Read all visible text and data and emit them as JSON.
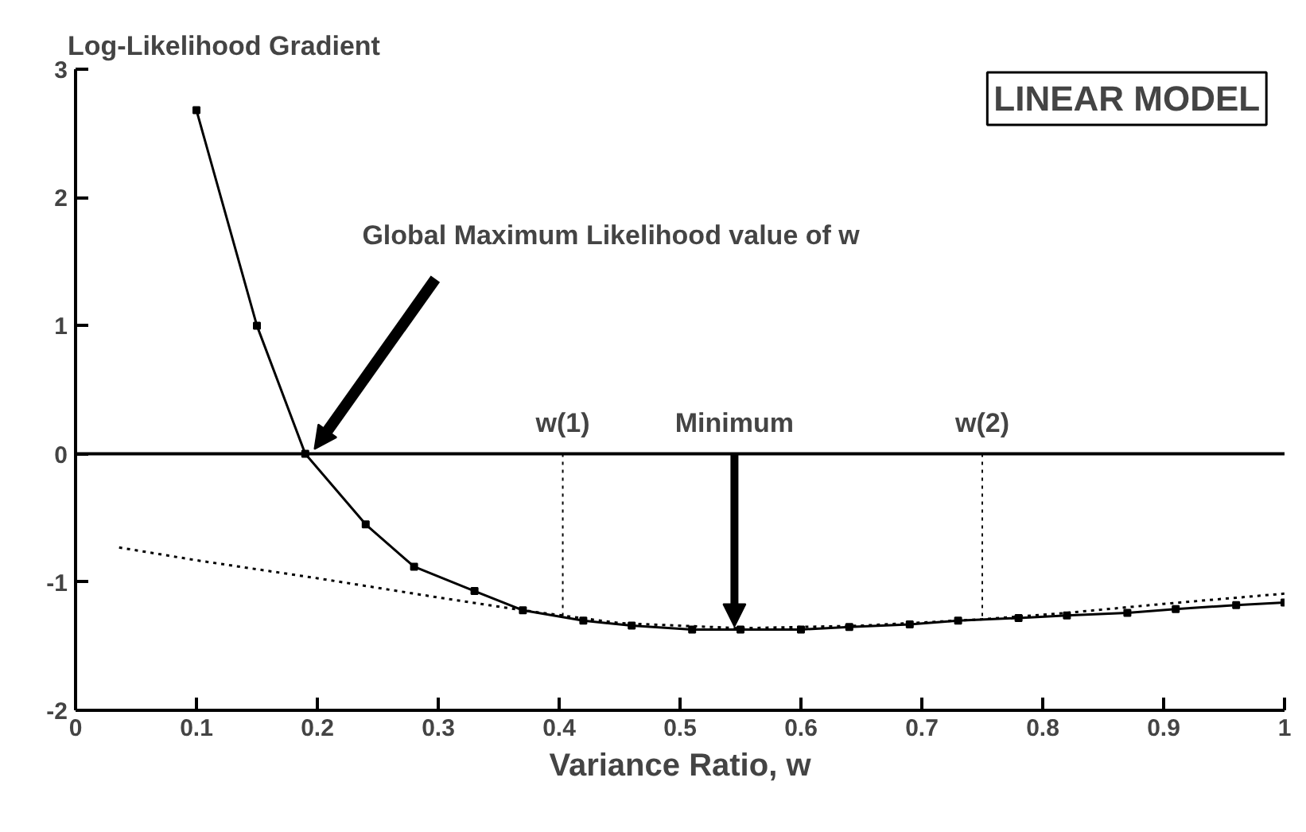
{
  "chart_data": {
    "type": "line",
    "xlabel": "Variance Ratio, w",
    "ylabel": "Log-Likelihood Gradient",
    "series": [
      {
        "color": "#000000",
        "marker": "square",
        "line_style": "solid",
        "x": [
          0.1,
          0.15,
          0.19,
          0.24,
          0.28,
          0.33,
          0.37,
          0.42,
          0.46,
          0.51,
          0.55,
          0.6,
          0.64,
          0.69,
          0.73,
          0.78,
          0.82,
          0.87,
          0.91,
          0.96,
          1.0
        ],
        "values": [
          2.68,
          1.0,
          0.0,
          -0.55,
          -0.88,
          -1.07,
          -1.22,
          -1.3,
          -1.34,
          -1.37,
          -1.37,
          -1.37,
          -1.35,
          -1.33,
          -1.3,
          -1.28,
          -1.26,
          -1.24,
          -1.21,
          -1.18,
          -1.16
        ]
      },
      {
        "color": "#000000",
        "marker": "none",
        "line_style": "dotted",
        "x": [
          0.036,
          0.1,
          0.2,
          0.3,
          0.37,
          0.45,
          0.55,
          0.65,
          0.75,
          0.82,
          0.9,
          1.0
        ],
        "values": [
          -0.73,
          -0.83,
          -0.97,
          -1.12,
          -1.22,
          -1.32,
          -1.36,
          -1.34,
          -1.29,
          -1.24,
          -1.17,
          -1.09
        ]
      }
    ],
    "xlim": [
      0,
      1
    ],
    "ylim": [
      -2,
      3
    ],
    "xticks": [
      0,
      0.1,
      0.2,
      0.3,
      0.4,
      0.5,
      0.6,
      0.7,
      0.8,
      0.9,
      1
    ],
    "yticks": [
      -2,
      -1,
      0,
      1,
      2,
      3
    ],
    "ref_lines": [
      {
        "axis": "y",
        "value": 0,
        "line_style": "solid"
      },
      {
        "axis": "x",
        "value": 0.403,
        "label": "w(1)",
        "line_style": "dotted"
      },
      {
        "axis": "x",
        "value": 0.75,
        "label": "w(2)",
        "line_style": "dotted"
      }
    ],
    "annotations": [
      "LINEAR MODEL",
      {
        "text": "Global Maximum Likelihood value of w",
        "x": 0.195,
        "y": 0
      },
      {
        "text": "Minimum",
        "x": 0.545,
        "y": -1.37
      }
    ],
    "grid": false
  }
}
